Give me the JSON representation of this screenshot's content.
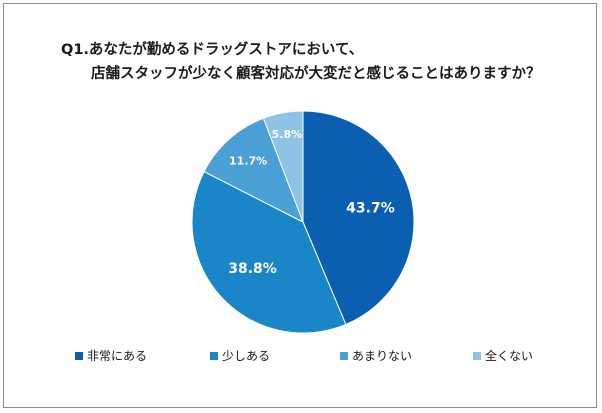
{
  "chart_data": {
    "type": "pie",
    "title_line1": "Q1.あなたが勤めるドラッグストアにおいて、",
    "title_line2": "店舗スタッフが少なく顧客対応が大変だと感じることはありますか？",
    "categories": [
      "非常にある",
      "少しある",
      "あまりない",
      "全くない"
    ],
    "values": [
      43.7,
      38.8,
      11.7,
      5.8
    ],
    "labels": [
      "43.7%",
      "38.8%",
      "11.7%",
      "5.8%"
    ],
    "colors": [
      "#0a5fb0",
      "#1a86c8",
      "#4a9fd4",
      "#8cc3e6"
    ],
    "legend_position": "bottom"
  }
}
